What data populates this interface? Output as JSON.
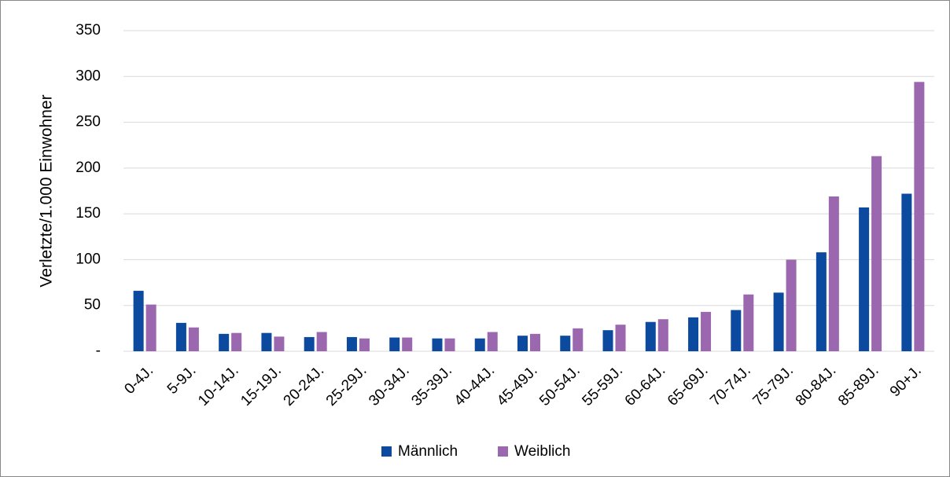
{
  "chart_data": {
    "type": "bar",
    "y_label": "Verletzte/1.000 Einwohner",
    "categories": [
      "0-4J.",
      "5-9J.",
      "10-14J.",
      "15-19J.",
      "20-24J.",
      "25-29J.",
      "30-34J.",
      "35-39J.",
      "40-44J.",
      "45-49J.",
      "50-54J.",
      "55-59J.",
      "60-64J.",
      "65-69J.",
      "70-74J.",
      "75-79J.",
      "80-84J.",
      "85-89J.",
      "90+J."
    ],
    "series": [
      {
        "name": "Männlich",
        "color": "#0b4a9e",
        "values": [
          66,
          31,
          19,
          20,
          15.5,
          15.5,
          15,
          14,
          14,
          17,
          17,
          23,
          32,
          37,
          45,
          64,
          108,
          157,
          172
        ]
      },
      {
        "name": "Weiblich",
        "color": "#9b67ae",
        "values": [
          51,
          26,
          20,
          16,
          21,
          14,
          15,
          14,
          21,
          19,
          25,
          29,
          35,
          43,
          62,
          100,
          169,
          213,
          294
        ]
      }
    ],
    "ylim": [
      0,
      350
    ],
    "yticks": [
      {
        "value": 0,
        "label": "-"
      },
      50,
      100,
      150,
      200,
      250,
      300,
      350
    ],
    "grid": true,
    "legend": "bottom"
  }
}
